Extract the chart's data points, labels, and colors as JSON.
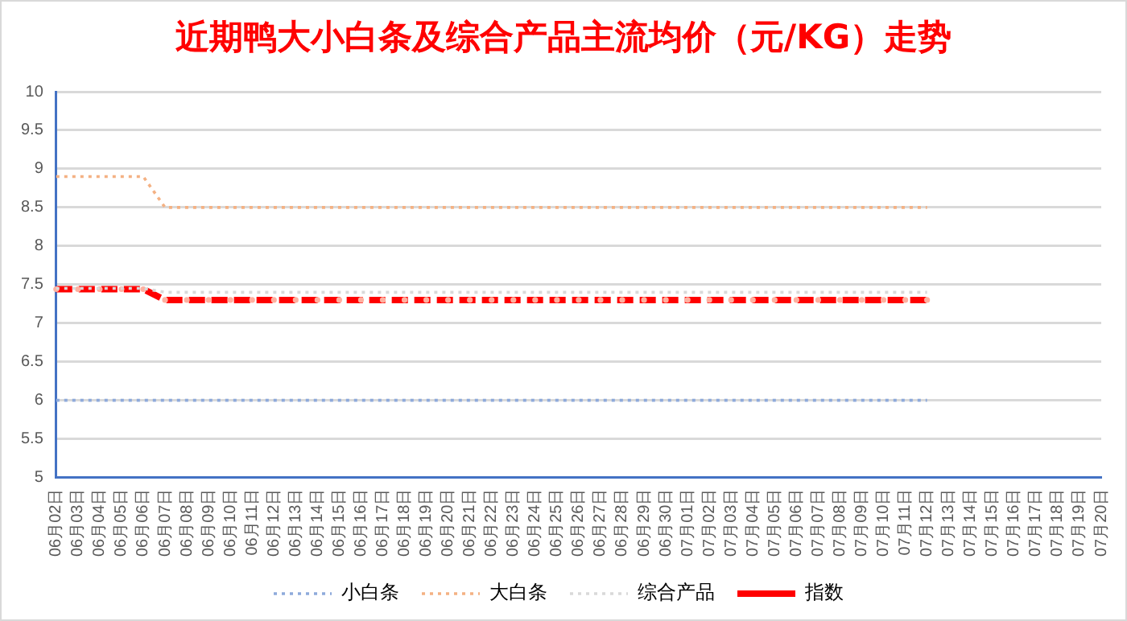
{
  "chart_data": {
    "type": "line",
    "title": "近期鸭大小白条及综合产品主流均价（元/KG）走势",
    "categories": [
      "06月02日",
      "06月03日",
      "06月04日",
      "06月05日",
      "06月06日",
      "06月07日",
      "06月08日",
      "06月09日",
      "06月10日",
      "06月11日",
      "06月12日",
      "06月13日",
      "06月14日",
      "06月15日",
      "06月16日",
      "06月17日",
      "06月18日",
      "06月19日",
      "06月20日",
      "06月21日",
      "06月22日",
      "06月23日",
      "06月24日",
      "06月25日",
      "06月26日",
      "06月27日",
      "06月28日",
      "06月29日",
      "06月30日",
      "07月01日",
      "07月02日",
      "07月03日",
      "07月04日",
      "07月05日",
      "07月06日",
      "07月07日",
      "07月08日",
      "07月09日",
      "07月10日",
      "07月11日",
      "07月12日",
      "07月13日",
      "07月14日",
      "07月15日",
      "07月16日",
      "07月17日",
      "07月18日",
      "07月19日",
      "07月20日"
    ],
    "series": [
      {
        "name": "小白条",
        "color": "#8eaadb",
        "line_style": "dotted",
        "marker": "none",
        "values": [
          6,
          6,
          6,
          6,
          6,
          6,
          6,
          6,
          6,
          6,
          6,
          6,
          6,
          6,
          6,
          6,
          6,
          6,
          6,
          6,
          6,
          6,
          6,
          6,
          6,
          6,
          6,
          6,
          6,
          6,
          6,
          6,
          6,
          6,
          6,
          6,
          6,
          6,
          6,
          6,
          6,
          null,
          null,
          null,
          null,
          null,
          null,
          null,
          null
        ]
      },
      {
        "name": "大白条",
        "color": "#f4b183",
        "line_style": "dotted",
        "marker": "none",
        "values": [
          8.9,
          8.9,
          8.9,
          8.9,
          8.9,
          8.5,
          8.5,
          8.5,
          8.5,
          8.5,
          8.5,
          8.5,
          8.5,
          8.5,
          8.5,
          8.5,
          8.5,
          8.5,
          8.5,
          8.5,
          8.5,
          8.5,
          8.5,
          8.5,
          8.5,
          8.5,
          8.5,
          8.5,
          8.5,
          8.5,
          8.5,
          8.5,
          8.5,
          8.5,
          8.5,
          8.5,
          8.5,
          8.5,
          8.5,
          8.5,
          8.5,
          null,
          null,
          null,
          null,
          null,
          null,
          null,
          null
        ]
      },
      {
        "name": "综合产品",
        "color": "#d9d9d9",
        "line_style": "dotted",
        "marker": "none",
        "values": [
          7.45,
          7.45,
          7.45,
          7.45,
          7.45,
          7.4,
          7.4,
          7.4,
          7.4,
          7.4,
          7.4,
          7.4,
          7.4,
          7.4,
          7.4,
          7.4,
          7.4,
          7.4,
          7.4,
          7.4,
          7.4,
          7.4,
          7.4,
          7.4,
          7.4,
          7.4,
          7.4,
          7.4,
          7.4,
          7.4,
          7.4,
          7.4,
          7.4,
          7.4,
          7.4,
          7.4,
          7.4,
          7.4,
          7.4,
          7.4,
          7.4,
          null,
          null,
          null,
          null,
          null,
          null,
          null,
          null
        ]
      },
      {
        "name": "指数",
        "color": "#ff0000",
        "line_style": "dashed",
        "marker": "circle",
        "values": [
          7.44,
          7.44,
          7.44,
          7.44,
          7.44,
          7.3,
          7.3,
          7.3,
          7.3,
          7.3,
          7.3,
          7.3,
          7.3,
          7.3,
          7.3,
          7.3,
          7.3,
          7.3,
          7.3,
          7.3,
          7.3,
          7.3,
          7.3,
          7.3,
          7.3,
          7.3,
          7.3,
          7.3,
          7.3,
          7.3,
          7.3,
          7.3,
          7.3,
          7.3,
          7.3,
          7.3,
          7.3,
          7.3,
          7.3,
          7.3,
          7.3,
          null,
          null,
          null,
          null,
          null,
          null,
          null,
          null
        ]
      }
    ],
    "ylim": [
      5,
      10
    ],
    "yticks": [
      5,
      5.5,
      6,
      6.5,
      7,
      7.5,
      8,
      8.5,
      9,
      9.5,
      10
    ],
    "grid": "y",
    "legend": "bottom"
  }
}
